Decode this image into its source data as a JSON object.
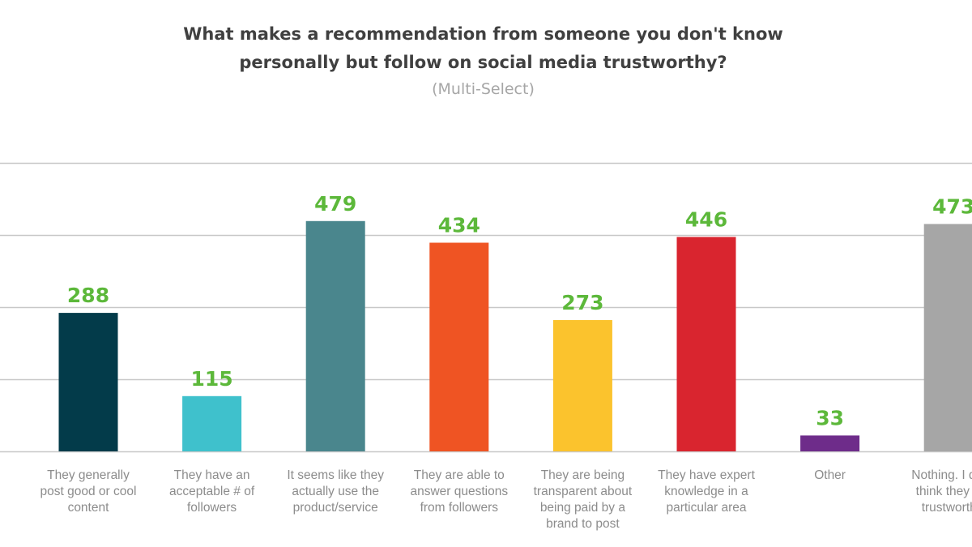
{
  "chart_data": {
    "type": "bar",
    "title": "What makes a recommendation from someone you don't know personally but follow on social media trustworthy?",
    "title_lines": [
      "What makes a recommendation from someone you don't know",
      "personally but follow on social media trustworthy?"
    ],
    "subtitle": "(Multi-Select)",
    "categories": [
      [
        "They generally",
        "post good or cool",
        "content"
      ],
      [
        "They have an",
        "acceptable # of",
        "followers"
      ],
      [
        "It seems like they",
        "actually use the",
        "product/service"
      ],
      [
        "They are able to",
        "answer questions",
        "from followers"
      ],
      [
        "They are being",
        "transparent about",
        "being paid by a",
        "brand to post"
      ],
      [
        "They have expert",
        "knowledge in a",
        "particular area"
      ],
      [
        "Other"
      ],
      [
        "Nothing. I don't",
        "think they are",
        "trustworthy."
      ]
    ],
    "values": [
      288,
      115,
      479,
      434,
      273,
      446,
      33,
      473
    ],
    "colors": [
      "#033b4a",
      "#3fc1cc",
      "#4a868d",
      "#ef5423",
      "#fbc32d",
      "#d9252f",
      "#6e2c8a",
      "#a6a6a6"
    ],
    "value_label_color": "#5cb83a",
    "ylim": [
      0,
      600
    ],
    "gridlines": [
      0,
      150,
      300,
      450,
      600
    ],
    "grid": true,
    "show_y_tick_labels": false
  }
}
